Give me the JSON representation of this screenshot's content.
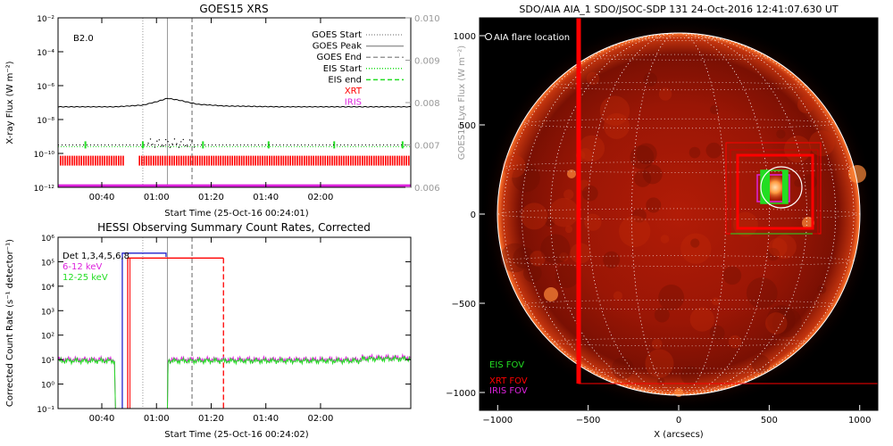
{
  "chart_data": [
    {
      "type": "line",
      "title": "GOES15 XRS",
      "xlabel": "Start Time (25-Oct-16 00:24:01)",
      "ylabel": "X-ray Flux (W m⁻²)",
      "y2label": "GOES15 Lyα Flux (W m⁻²)",
      "x_ticks": [
        "00:40",
        "01:00",
        "01:20",
        "01:40",
        "02:00"
      ],
      "y_ticks": [
        "10⁻¹²",
        "10⁻¹⁰",
        "10⁻⁸",
        "10⁻⁶",
        "10⁻⁴",
        "10⁻²"
      ],
      "y_log_range": [
        -12,
        -2
      ],
      "y2_ticks": [
        "0.006",
        "0.007",
        "0.008",
        "0.009",
        "0.010"
      ],
      "y2_range": [
        0.006,
        0.01
      ],
      "xlim_minutes": [
        24,
        153
      ],
      "annotation": "B2.0",
      "legend": [
        {
          "name": "GOES Start",
          "style": "dotted",
          "color": "#999999"
        },
        {
          "name": "GOES Peak",
          "style": "solid",
          "color": "#999999"
        },
        {
          "name": "GOES End",
          "style": "dashed",
          "color": "#999999"
        },
        {
          "name": "EIS Start",
          "style": "dotted",
          "color": "#22dd22"
        },
        {
          "name": "EIS end",
          "style": "dashed",
          "color": "#22dd22"
        },
        {
          "name": "XRT",
          "style": "text",
          "color": "#ff0000"
        },
        {
          "name": "IRIS",
          "style": "text",
          "color": "#dd22dd"
        }
      ],
      "events": {
        "goes_start": "00:55",
        "goes_peak": "01:04",
        "goes_end": "01:13"
      },
      "xrs_long_flux": {
        "x": [
          "00:24",
          "00:45",
          "00:55",
          "01:00",
          "01:04",
          "01:08",
          "01:15",
          "01:25",
          "01:45",
          "02:12"
        ],
        "log": [
          -7.25,
          -7.25,
          -7.15,
          -6.95,
          -6.75,
          -6.85,
          -7.1,
          -7.2,
          -7.25,
          -7.25
        ]
      },
      "lya_level": 0.00696,
      "xrt_log_flux": -10.4,
      "iris_log_flux": -11.9
    },
    {
      "type": "line",
      "title": "HESSI Observing Summary Count Rates, Corrected",
      "xlabel": "Start Time (25-Oct-16 00:24:02)",
      "ylabel": "Corrected Count Rate (s⁻¹ detector⁻¹)",
      "x_ticks": [
        "00:40",
        "01:00",
        "01:20",
        "01:40",
        "02:00"
      ],
      "y_ticks": [
        "10⁻¹",
        "10⁰",
        "10¹",
        "10²",
        "10³",
        "10⁴",
        "10⁵",
        "10⁶"
      ],
      "y_log_range": [
        -1,
        6
      ],
      "xlim_minutes": [
        24,
        153
      ],
      "legend_title": "Det 1,3,4,5,6,8",
      "series": [
        {
          "name": "6-12 keV",
          "color": "#dd22dd",
          "log": 1.0
        },
        {
          "name": "12-25 keV",
          "color": "#22dd22",
          "log": 0.95
        }
      ],
      "gap": [
        "00:45",
        "01:04"
      ],
      "events": {
        "goes_start": "00:55",
        "goes_peak": "01:04",
        "goes_end": "01:13"
      }
    },
    {
      "type": "image",
      "title": "SDO/AIA AIA_1 SDO/JSOC-SDP 131 24-Oct-2016 12:41:07.630 UT",
      "xlabel": "X (arcsecs)",
      "x_ticks": [
        "−1000",
        "−500",
        "0",
        "500",
        "1000"
      ],
      "y_ticks": [
        "−1000",
        "−500",
        "0",
        "500",
        "1000"
      ],
      "range": [
        -1100,
        1100
      ],
      "legend": [
        {
          "name": "AIA flare location",
          "color": "#ffffff"
        },
        {
          "name": "EIS FOV",
          "color": "#22dd22"
        },
        {
          "name": "XRT FOV",
          "color": "#ff0000"
        },
        {
          "name": "IRIS FOV",
          "color": "#dd22dd"
        }
      ]
    }
  ]
}
